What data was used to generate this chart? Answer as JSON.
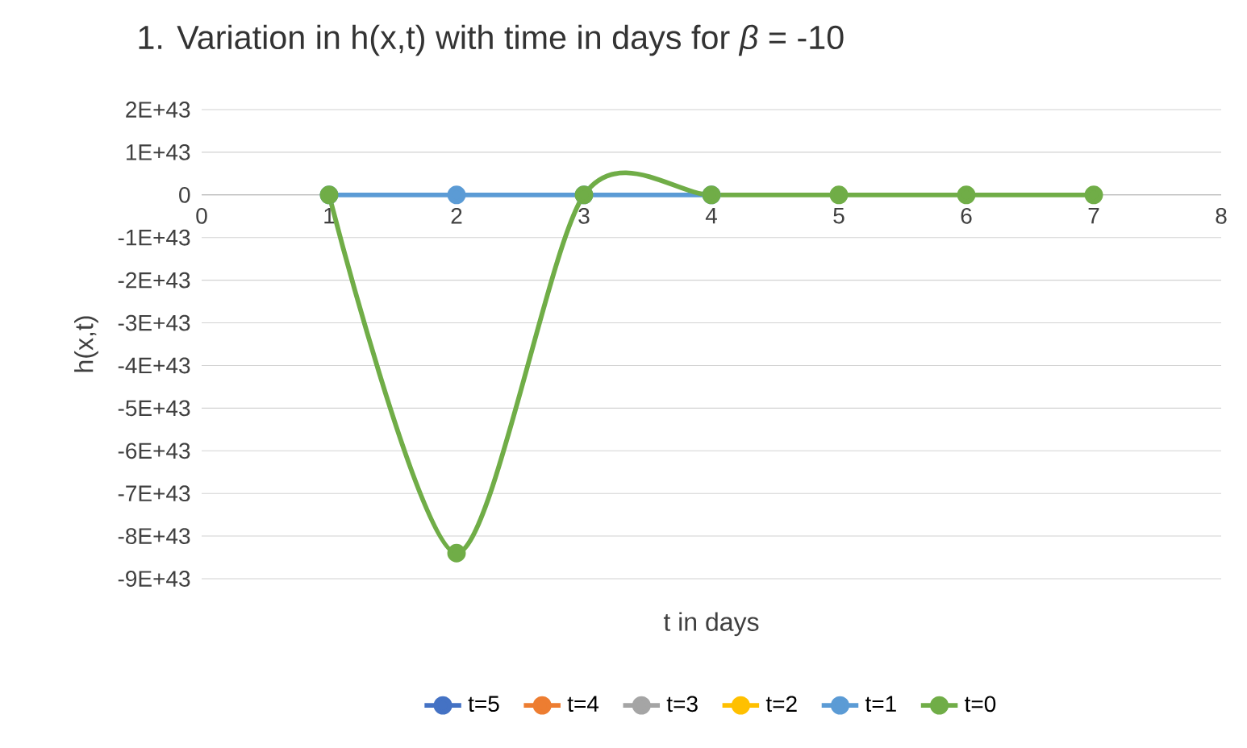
{
  "chart_data": {
    "type": "line",
    "title": "1. Variation in h(x,t) with time in days for *β* = -10",
    "xlabel": "t in days",
    "ylabel": "h(x,t)",
    "x": [
      1,
      2,
      3,
      4,
      5,
      6,
      7
    ],
    "series": [
      {
        "name": "t=5",
        "color": "#4472c4",
        "values": [
          null,
          null,
          null,
          null,
          null,
          null,
          null
        ]
      },
      {
        "name": "t=4",
        "color": "#ed7d31",
        "values": [
          null,
          null,
          null,
          null,
          null,
          null,
          null
        ]
      },
      {
        "name": "t=3",
        "color": "#a5a5a5",
        "values": [
          null,
          null,
          null,
          null,
          null,
          null,
          null
        ]
      },
      {
        "name": "t=2",
        "color": "#ffc000",
        "values": [
          null,
          null,
          null,
          null,
          null,
          null,
          null
        ]
      },
      {
        "name": "t=1",
        "color": "#5b9bd5",
        "values": [
          0,
          0,
          0,
          0,
          null,
          null,
          null
        ]
      },
      {
        "name": "t=0",
        "color": "#70ad47",
        "values": [
          0,
          -8.4e+43,
          0,
          0,
          0,
          0,
          0
        ]
      }
    ],
    "xlim": [
      0,
      8
    ],
    "xticks": [
      0,
      1,
      2,
      3,
      4,
      5,
      6,
      7,
      8
    ],
    "ylim": [
      -9e+43,
      2e+43
    ],
    "yticks": [
      {
        "value": 2e+43,
        "label": "2E+43"
      },
      {
        "value": 1e+43,
        "label": "1E+43"
      },
      {
        "value": 0,
        "label": "0"
      },
      {
        "value": -1e+43,
        "label": "-1E+43"
      },
      {
        "value": -2e+43,
        "label": "-2E+43"
      },
      {
        "value": -3e+43,
        "label": "-3E+43"
      },
      {
        "value": -4e+43,
        "label": "-4E+43"
      },
      {
        "value": -5e+43,
        "label": "-5E+43"
      },
      {
        "value": -6e+43,
        "label": "-6E+43"
      },
      {
        "value": -7e+43,
        "label": "-7E+43"
      },
      {
        "value": -8e+43,
        "label": "-8E+43"
      },
      {
        "value": -9e+43,
        "label": "-9E+43"
      }
    ],
    "grid": "y",
    "legend": "bottom",
    "marker": "circle",
    "line_style": "solid"
  }
}
